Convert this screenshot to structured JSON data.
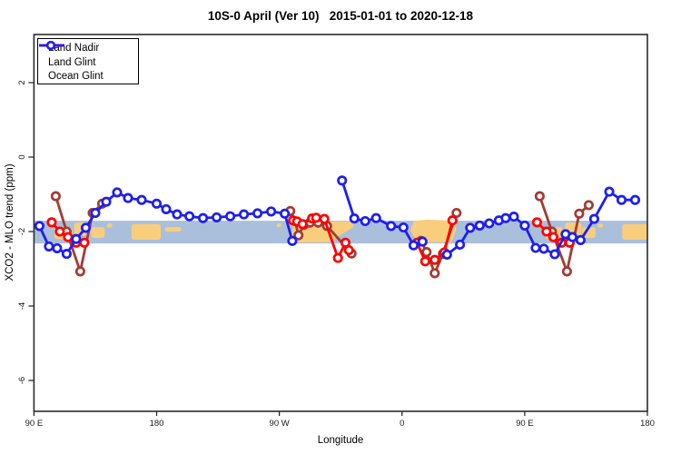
{
  "title": "10S-0 April (Ver 10)   2015-01-01 to 2020-12-18",
  "legend": {
    "items": [
      {
        "label": "Land Nadir",
        "color": "#A33B32"
      },
      {
        "label": "Land Glint",
        "color": "#FF0000"
      },
      {
        "label": "Ocean Glint",
        "color": "#1E1EF0"
      }
    ]
  },
  "chart_data": {
    "type": "line",
    "title": "10S-0 April (Ver 10)   2015-01-01 to 2020-12-18",
    "xlabel": "Longitude",
    "ylabel": "XCO2 - MLO trend (ppm)",
    "x_axis": {
      "range": [
        90,
        540
      ],
      "note": "longitude axis wraps eastward: 90E to 180 to 90W to 0 to 90E to 180",
      "ticks": [
        {
          "lon": 90,
          "label": "90 E"
        },
        {
          "lon": 180,
          "label": "180"
        },
        {
          "lon": 270,
          "label": "90 W"
        },
        {
          "lon": 360,
          "label": "0"
        },
        {
          "lon": 450,
          "label": "90 E"
        },
        {
          "lon": 540,
          "label": "180"
        }
      ]
    },
    "y_axis": {
      "range": [
        -6.8,
        3.3
      ],
      "ticks": [
        {
          "v": 2,
          "label": "2"
        },
        {
          "v": 0,
          "label": "0"
        },
        {
          "v": -2,
          "label": "-2"
        },
        {
          "v": -4,
          "label": "-4"
        },
        {
          "v": -6,
          "label": "-6"
        }
      ]
    },
    "reference_band": {
      "from": -1.71,
      "to": -2.32,
      "color": "#AABFDB"
    },
    "land_overlay": {
      "color": "#F8CE7D",
      "rects": [
        [
          105,
          118,
          -1.88,
          -2.2
        ],
        [
          113,
          128.5,
          -2.17,
          -2.28
        ],
        [
          119.5,
          131.5,
          -1.76,
          -2.1
        ],
        [
          132,
          142,
          -1.88,
          -2.17
        ],
        [
          143.5,
          147.5,
          -1.78,
          -1.9
        ],
        [
          161.5,
          183,
          -1.8,
          -2.22
        ],
        [
          186,
          198,
          -1.88,
          -2.0
        ],
        [
          268,
          271.5,
          -1.78,
          -1.88
        ],
        [
          465,
          478,
          -1.88,
          -2.2
        ],
        [
          473,
          488.5,
          -2.17,
          -2.28
        ],
        [
          479.5,
          491.5,
          -1.76,
          -2.1
        ],
        [
          492,
          502,
          -1.88,
          -2.17
        ],
        [
          503.5,
          507.5,
          -1.78,
          -1.9
        ],
        [
          521.5,
          543,
          -1.8,
          -2.22
        ]
      ],
      "polygons": [
        [
          [
            278.2,
            -2.12
          ],
          [
            280.9,
            -1.8
          ],
          [
            286.2,
            -1.73
          ],
          [
            324.2,
            -1.73
          ],
          [
            324.2,
            -1.88
          ],
          [
            306.2,
            -2.29
          ],
          [
            284.9,
            -2.29
          ],
          [
            279.6,
            -2.24
          ]
        ],
        [
          [
            366.2,
            -1.95
          ],
          [
            368.8,
            -1.71
          ],
          [
            378.1,
            -1.68
          ],
          [
            400.1,
            -1.71
          ],
          [
            399.4,
            -2.0
          ],
          [
            396.1,
            -2.29
          ],
          [
            373.5,
            -2.29
          ],
          [
            368.2,
            -2.12
          ]
        ]
      ]
    },
    "series": [
      {
        "name": "Land Nadir",
        "color": "#A33B32",
        "segments": [
          [
            [
              106,
              -1.05
            ],
            [
              114,
              -2.0
            ],
            [
              124,
              -3.07
            ],
            [
              133,
              -1.5
            ],
            [
              140,
              -1.25
            ]
          ],
          [
            [
              278,
              -1.45
            ],
            [
              281.5,
              -1.72
            ],
            [
              284,
              -2.1
            ],
            [
              288,
              -1.82
            ],
            [
              292.5,
              -1.76
            ],
            [
              298.5,
              -1.76
            ],
            [
              305,
              -1.85
            ],
            [
              323,
              -2.59
            ]
          ],
          [
            [
              374,
              -2.25
            ],
            [
              378,
              -2.55
            ],
            [
              384,
              -3.12
            ],
            [
              390,
              -2.6
            ],
            [
              400,
              -1.5
            ]
          ],
          [
            [
              461,
              -1.05
            ],
            [
              470,
              -2.0
            ],
            [
              481,
              -3.07
            ],
            [
              490,
              -1.52
            ],
            [
              497,
              -1.29
            ]
          ]
        ]
      },
      {
        "name": "Land Glint",
        "color": "#FF0000",
        "segments": [
          [
            [
              103,
              -1.75
            ],
            [
              109,
              -2.0
            ],
            [
              115,
              -2.15
            ],
            [
              121,
              -2.3
            ],
            [
              127,
              -2.3
            ]
          ],
          [
            [
              280,
              -1.7
            ],
            [
              283,
              -1.73
            ],
            [
              287,
              -1.8
            ],
            [
              294,
              -1.65
            ],
            [
              297,
              -1.63
            ],
            [
              303,
              -1.66
            ],
            [
              313,
              -2.71
            ],
            [
              318.5,
              -2.3
            ],
            [
              321,
              -2.5
            ]
          ],
          [
            [
              371,
              -2.3
            ],
            [
              377,
              -2.8
            ],
            [
              384,
              -2.76
            ],
            [
              391,
              -2.56
            ],
            [
              397,
              -1.7
            ]
          ],
          [
            [
              459,
              -1.75
            ],
            [
              466,
              -2.0
            ],
            [
              471,
              -2.15
            ],
            [
              477,
              -2.3
            ],
            [
              483,
              -2.3
            ]
          ]
        ]
      },
      {
        "name": "Ocean Glint",
        "color": "#1E1EF0",
        "segments": [
          [
            [
              94,
              -1.85
            ],
            [
              101,
              -2.4
            ],
            [
              107,
              -2.45
            ],
            [
              114,
              -2.6
            ],
            [
              121,
              -2.2
            ],
            [
              128,
              -1.9
            ],
            [
              135,
              -1.5
            ],
            [
              143,
              -1.2
            ],
            [
              151,
              -0.95
            ],
            [
              159,
              -1.1
            ],
            [
              169,
              -1.15
            ],
            [
              180,
              -1.25
            ],
            [
              187,
              -1.4
            ],
            [
              195,
              -1.54
            ],
            [
              204,
              -1.59
            ],
            [
              214,
              -1.64
            ],
            [
              224,
              -1.62
            ],
            [
              234,
              -1.59
            ],
            [
              244,
              -1.54
            ],
            [
              254,
              -1.51
            ],
            [
              264,
              -1.46
            ],
            [
              274,
              -1.52
            ],
            [
              279.5,
              -2.25
            ]
          ],
          [
            [
              316,
              -0.63
            ],
            [
              325,
              -1.65
            ],
            [
              333,
              -1.72
            ],
            [
              341,
              -1.64
            ],
            [
              352,
              -1.85
            ],
            [
              361,
              -1.89
            ],
            [
              368.5,
              -2.37
            ],
            [
              375,
              -2.27
            ]
          ],
          [
            [
              393,
              -2.62
            ],
            [
              402.5,
              -2.35
            ],
            [
              410,
              -1.9
            ],
            [
              417,
              -1.84
            ],
            [
              424,
              -1.78
            ],
            [
              431,
              -1.7
            ],
            [
              436,
              -1.64
            ],
            [
              442,
              -1.6
            ],
            [
              450,
              -1.84
            ],
            [
              458,
              -2.44
            ],
            [
              464,
              -2.46
            ],
            [
              472,
              -2.61
            ],
            [
              480,
              -2.07
            ],
            [
              485,
              -2.15
            ],
            [
              491,
              -2.23
            ],
            [
              501,
              -1.66
            ],
            [
              512,
              -0.93
            ],
            [
              521,
              -1.15
            ],
            [
              531,
              -1.15
            ]
          ]
        ]
      }
    ]
  }
}
